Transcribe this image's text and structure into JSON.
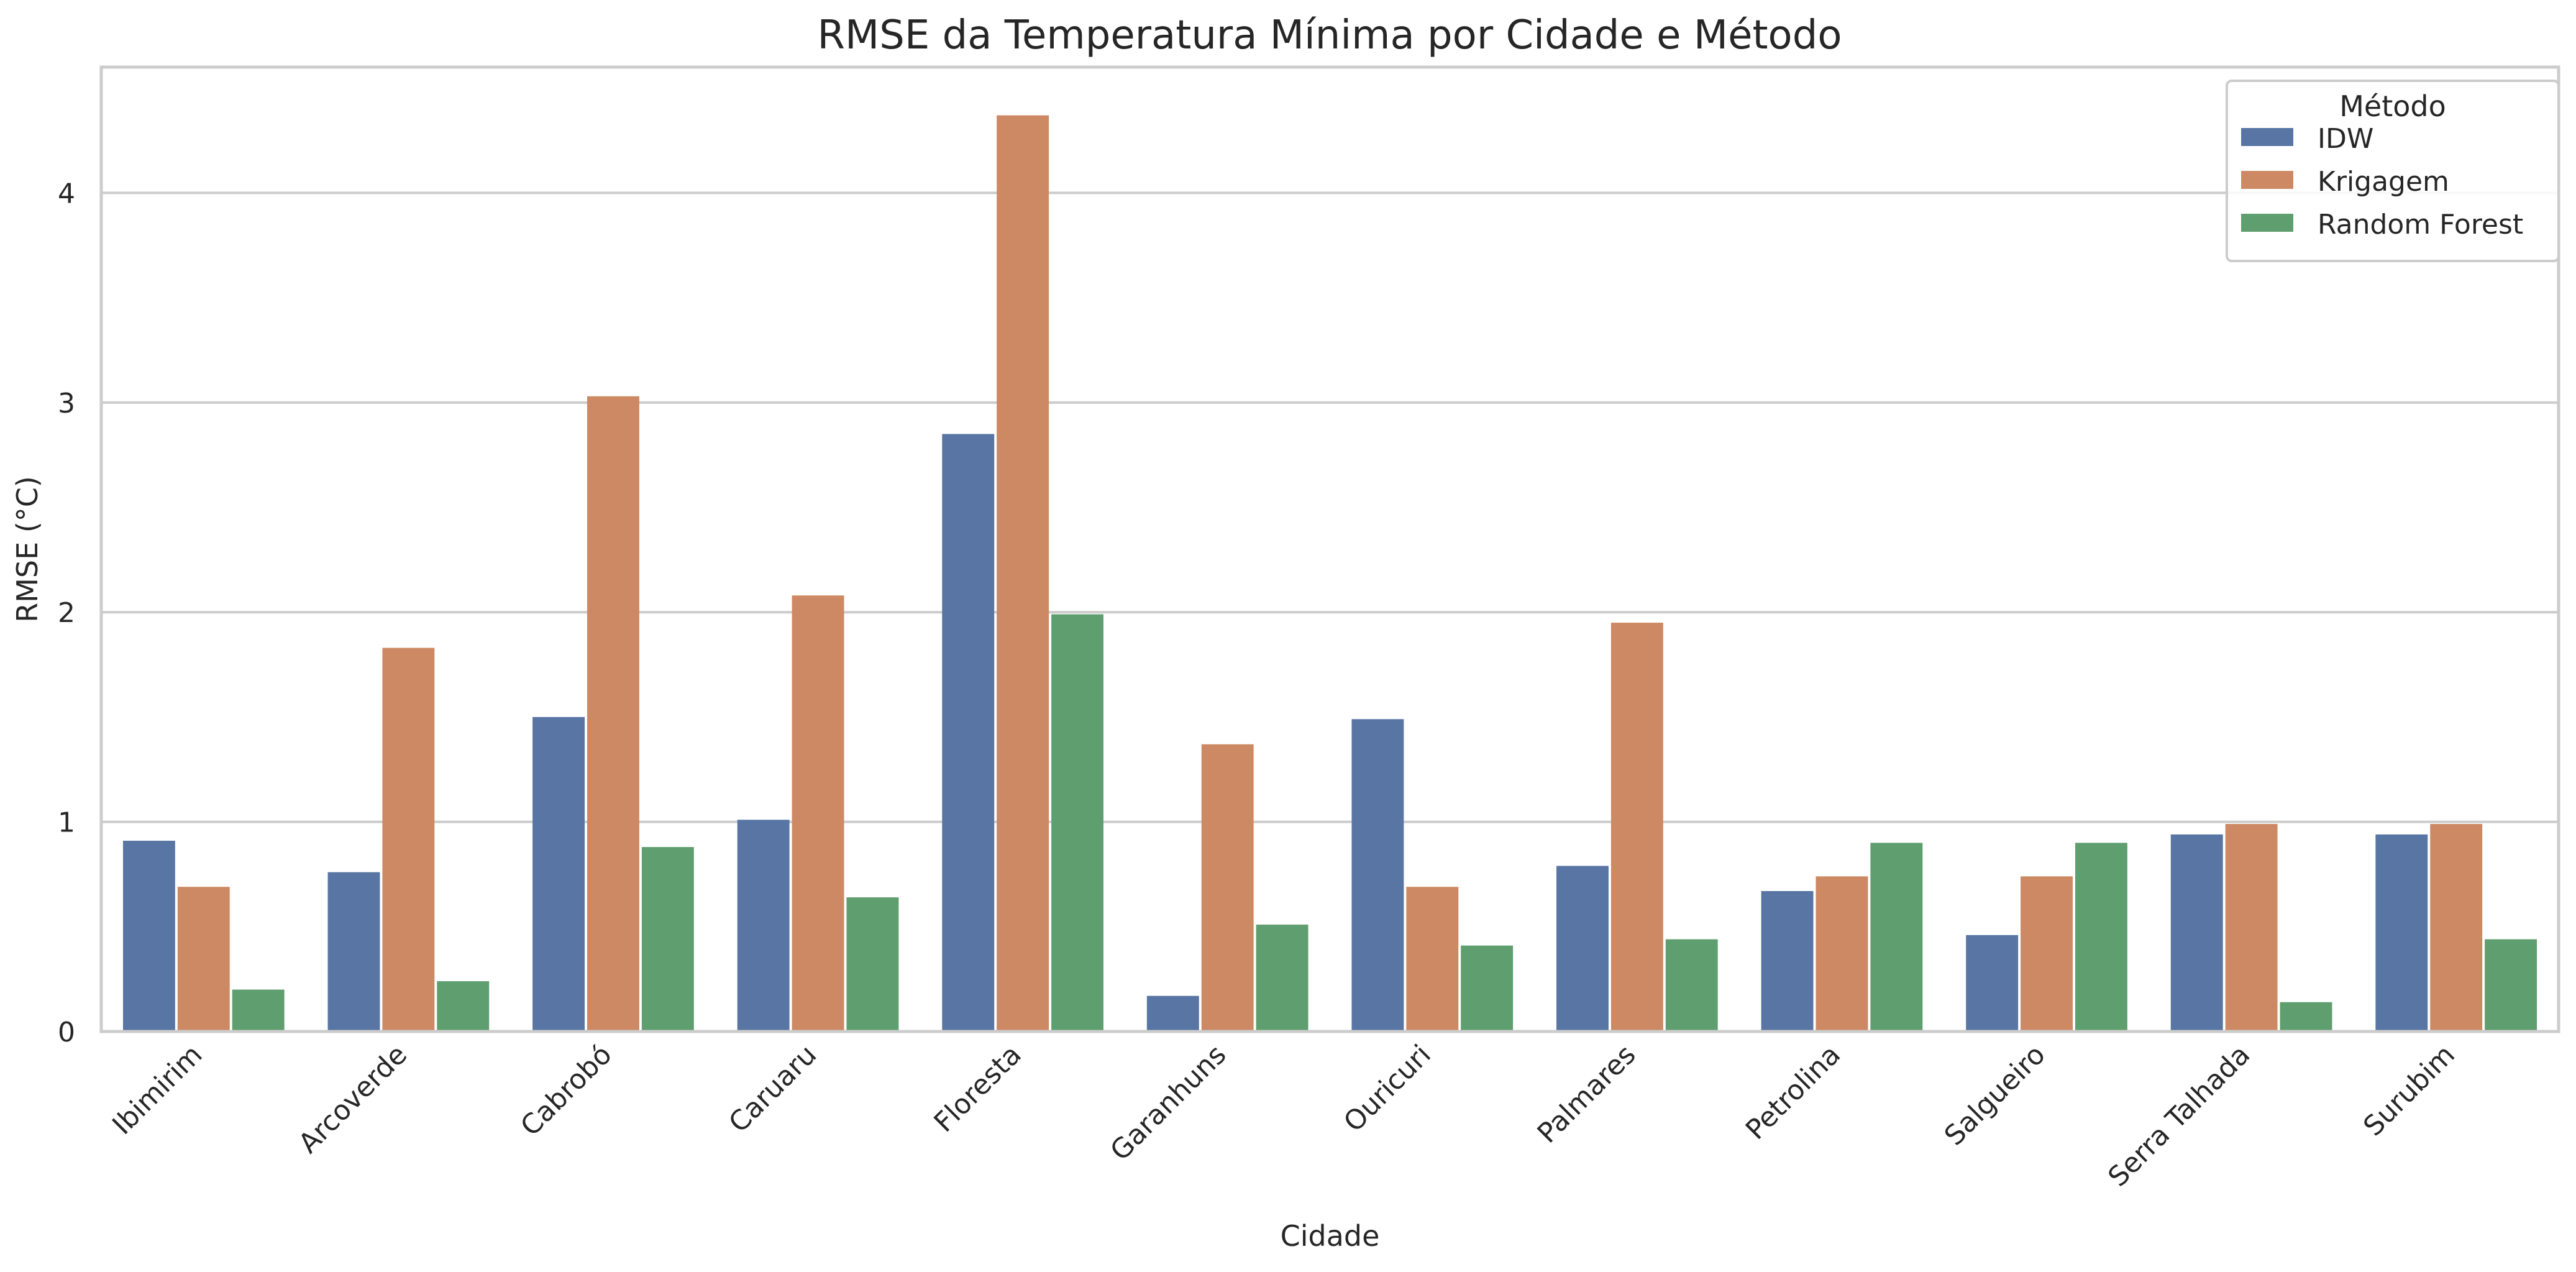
{
  "chart_data": {
    "type": "bar",
    "title": "RMSE da Temperatura Mínima por Cidade e Método",
    "xlabel": "Cidade",
    "ylabel": "RMSE (°C)",
    "ylim": [
      0,
      4.6
    ],
    "yticks": [
      0,
      1,
      2,
      3,
      4
    ],
    "grid": true,
    "legend_title": "Método",
    "legend_position": "top-right",
    "categories": [
      "Ibimirim",
      "Arcoverde",
      "Cabrobó",
      "Caruaru",
      "Floresta",
      "Garanhuns",
      "Ouricuri",
      "Palmares",
      "Petrolina",
      "Salgueiro",
      "Serra Talhada",
      "Surubim"
    ],
    "series": [
      {
        "name": "IDW",
        "color": "#5875a4",
        "values": [
          0.91,
          0.76,
          1.5,
          1.01,
          2.85,
          0.17,
          1.49,
          0.79,
          0.67,
          0.46,
          0.94,
          0.94
        ]
      },
      {
        "name": "Krigagem",
        "color": "#cc8963",
        "values": [
          0.69,
          1.83,
          3.03,
          2.08,
          4.37,
          1.37,
          0.69,
          1.95,
          0.74,
          0.74,
          0.99,
          0.99
        ]
      },
      {
        "name": "Random Forest",
        "color": "#5f9e6e",
        "values": [
          0.2,
          0.24,
          0.88,
          0.64,
          1.99,
          0.51,
          0.41,
          0.44,
          0.9,
          0.9,
          0.14,
          0.44
        ]
      }
    ]
  }
}
